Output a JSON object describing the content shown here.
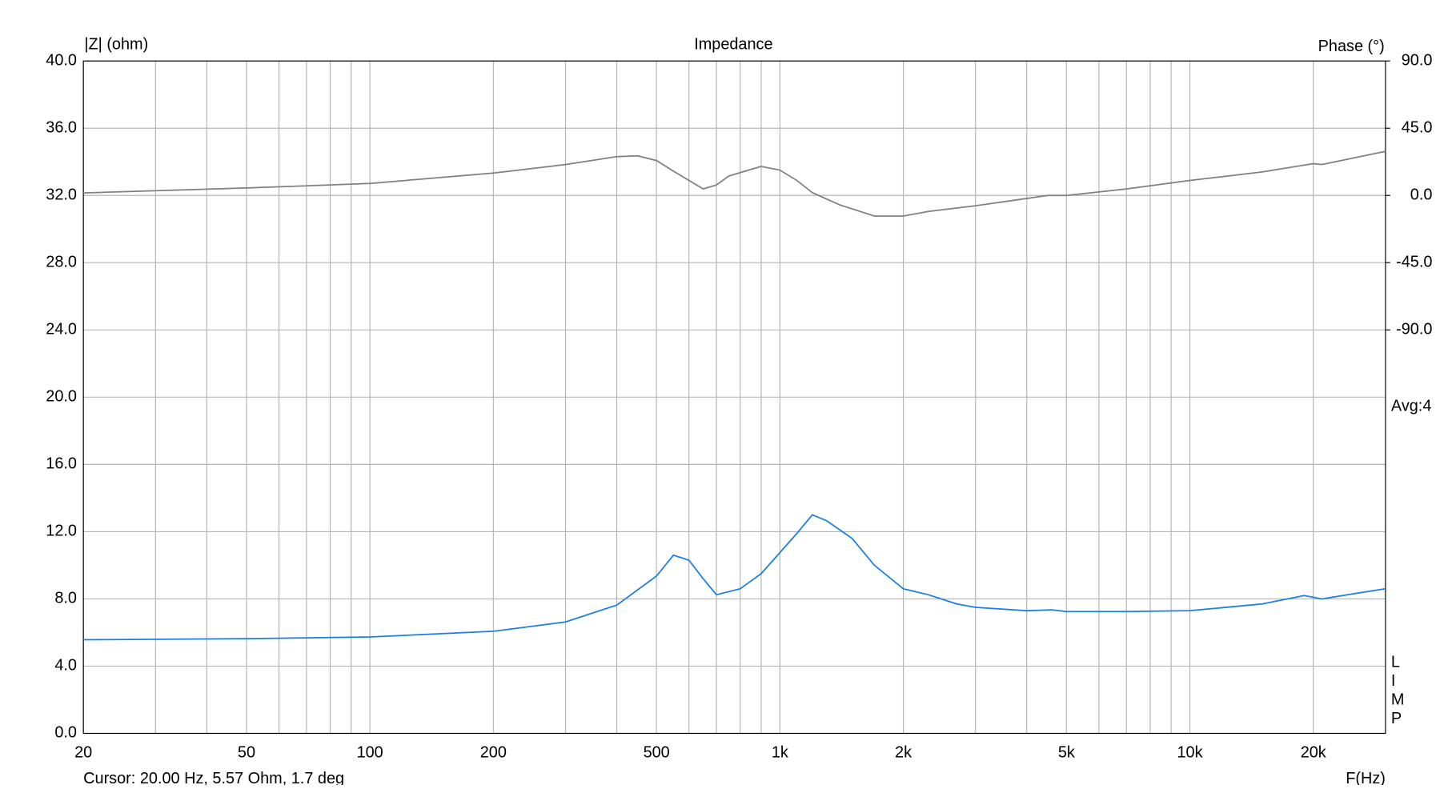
{
  "chart_data": {
    "type": "line",
    "title": "Impedance",
    "ylabel": "|Z| (ohm)",
    "y2label": "Phase (°)",
    "xlabel": "F(Hz)",
    "annotations": [
      "Avg:4",
      "LIMP",
      "Cursor: 20.00 Hz, 5.57 Ohm, 1.7 deg"
    ],
    "log_x": true,
    "grid": true,
    "xlim": [
      20,
      30000
    ],
    "xticks": [
      20,
      50,
      100,
      200,
      500,
      {
        "value": 1000,
        "label": "1k"
      },
      {
        "value": 2000,
        "label": "2k"
      },
      {
        "value": 5000,
        "label": "5k"
      },
      {
        "value": 10000,
        "label": "10k"
      },
      {
        "value": 20000,
        "label": "20k"
      }
    ],
    "xminorticks": [
      30,
      40,
      60,
      70,
      80,
      90,
      300,
      400,
      600,
      700,
      800,
      900,
      3000,
      4000,
      6000,
      7000,
      8000,
      9000
    ],
    "ylim": [
      0,
      40
    ],
    "yticks": [
      {
        "value": 0,
        "label": "0.0"
      },
      {
        "value": 4,
        "label": "4.0"
      },
      {
        "value": 8,
        "label": "8.0"
      },
      {
        "value": 12,
        "label": "12.0"
      },
      {
        "value": 16,
        "label": "16.0"
      },
      {
        "value": 20,
        "label": "20.0"
      },
      {
        "value": 24,
        "label": "24.0"
      },
      {
        "value": 28,
        "label": "28.0"
      },
      {
        "value": 32,
        "label": "32.0"
      },
      {
        "value": 36,
        "label": "36.0"
      },
      {
        "value": 40,
        "label": "40.0"
      }
    ],
    "y2lim": [
      -360,
      90
    ],
    "y2ticks": [
      {
        "value": 90,
        "label": "90.0"
      },
      {
        "value": 45,
        "label": "45.0"
      },
      {
        "value": 0,
        "label": "0.0"
      },
      {
        "value": -45,
        "label": "-45.0"
      },
      {
        "value": -90,
        "label": "-90.0"
      }
    ],
    "series": [
      {
        "color": "#1a7fe0",
        "x": [
          20,
          50,
          100,
          200,
          300,
          400,
          500,
          550,
          600,
          650,
          700,
          800,
          900,
          1000,
          1100,
          1200,
          1300,
          1500,
          1700,
          2000,
          2300,
          2700,
          3000,
          4000,
          4600,
          5000,
          7000,
          10000,
          15000,
          19000,
          21000,
          25000,
          30000
        ],
        "values": [
          5.57,
          5.63,
          5.74,
          6.07,
          6.63,
          7.63,
          9.36,
          10.6,
          10.3,
          9.2,
          8.25,
          8.6,
          9.5,
          10.75,
          11.9,
          13.0,
          12.65,
          11.6,
          10.0,
          8.6,
          8.25,
          7.7,
          7.5,
          7.3,
          7.35,
          7.25,
          7.25,
          7.3,
          7.7,
          8.2,
          8.0,
          8.3,
          8.6
        ]
      },
      {
        "color": "#808080",
        "axis": "y2",
        "x": [
          20,
          50,
          100,
          200,
          300,
          400,
          450,
          500,
          550,
          600,
          650,
          700,
          750,
          850,
          900,
          1000,
          1100,
          1200,
          1400,
          1700,
          2000,
          2300,
          3000,
          4500,
          5000,
          7000,
          10000,
          15000,
          20000,
          21000,
          30000
        ],
        "values": [
          1.7,
          5,
          8,
          15,
          20.7,
          26,
          26.5,
          23.4,
          16.3,
          10,
          4.4,
          7,
          13,
          17.5,
          19.4,
          17,
          10,
          1.9,
          -6.3,
          -13.8,
          -13.8,
          -10.7,
          -6.9,
          0,
          0,
          4.4,
          10,
          15.7,
          21.3,
          20.7,
          29.5
        ]
      }
    ]
  }
}
